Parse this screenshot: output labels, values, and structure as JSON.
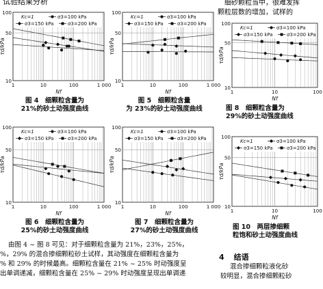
{
  "heading": "试验结果分析",
  "top_right_text": [
    "细砂颗粒当中，很难发挥",
    "颗粒层数的增加，试样的"
  ],
  "legend": {
    "k": "Kc=1",
    "s100": "σ3=100 kPa",
    "s150": "σ3=150 kPa",
    "s200": "σ3=200 kPa"
  },
  "axis": {
    "xlabel": "Nf",
    "ylabel": "τd/kPa",
    "y_ticks": [
      "10",
      "50",
      "100"
    ],
    "x_ticks": [
      "1",
      "10",
      "100",
      "1 000"
    ]
  },
  "colors": {
    "ink": "#111111",
    "grid": "#8a8a8a",
    "curve": "#333333"
  },
  "figures": [
    {
      "id": "fig4",
      "caption_lines": [
        "图 4　细颗粒含量为",
        "21%的砂土动强度曲线"
      ]
    },
    {
      "id": "fig5",
      "caption_lines": [
        "图 5　细颗粒含量",
        "为 23%的砂土动强度曲线"
      ]
    },
    {
      "id": "fig6",
      "caption_lines": [
        "图 6　细颗粒含量为",
        "25%的砂土动强度曲线"
      ]
    },
    {
      "id": "fig7",
      "caption_lines": [
        "图 7　细颗粒含量为",
        "27%的砂土动强度曲线"
      ]
    },
    {
      "id": "fig8",
      "caption_lines": [
        "图 8　细颗粒含量为",
        "29%的砂土动强度曲线"
      ]
    },
    {
      "id": "fig10",
      "caption_lines": [
        "图 10　两层掺细颗",
        "粒饱和砂土动强度曲线"
      ]
    }
  ],
  "body_text": [
    "由图 4 ~ 图 8 可见：对于细颗粒含量为 21%，23%，25%，",
    "%，29% 的混合掺细颗粒砂土试样，其动强度在细颗粒含量为",
    "% 和 29% 的时候最高。细颗粒含量在 21% ~ 25% 时动强度呈",
    "出单调递减，细颗粒含量在 25% ~ 29% 时动强度呈现出单调递"
  ],
  "section": {
    "number": "4",
    "title": "结语"
  },
  "section_text": [
    "混合掺细颗粒液化砂",
    "较明显，混合掺细颗粒砂"
  ],
  "chart_data": [
    {
      "type": "scatter",
      "id": "fig4",
      "x_scale": "log",
      "xlim": [
        1,
        1000
      ],
      "ylim": [
        10,
        100
      ],
      "series": [
        {
          "name": "σ3=100 kPa",
          "marker": "circle",
          "x": [
            10,
            15,
            40,
            60
          ],
          "y": [
            33,
            30,
            28,
            32
          ]
        },
        {
          "name": "σ3=150 kPa",
          "marker": "diamond",
          "x": [
            12,
            30,
            70
          ],
          "y": [
            36,
            34,
            32
          ]
        },
        {
          "name": "σ3=200 kPa",
          "marker": "square",
          "x": [
            45,
            80,
            150
          ],
          "y": [
            42,
            40,
            38
          ]
        }
      ]
    },
    {
      "type": "scatter",
      "id": "fig5",
      "x_scale": "log",
      "xlim": [
        1,
        1000
      ],
      "ylim": [
        10,
        100
      ],
      "series": [
        {
          "name": "σ3=100 kPa",
          "marker": "circle",
          "x": [
            7,
            20,
            60,
            120
          ],
          "y": [
            26,
            28,
            25,
            27
          ]
        },
        {
          "name": "σ3=150 kPa",
          "marker": "diamond",
          "x": [
            10,
            25,
            60
          ],
          "y": [
            33,
            34,
            32
          ]
        },
        {
          "name": "σ3=200 kPa",
          "marker": "square",
          "x": [
            25,
            70
          ],
          "y": [
            40,
            42
          ]
        }
      ]
    },
    {
      "type": "scatter",
      "id": "fig6",
      "x_scale": "log",
      "xlim": [
        1,
        1000
      ],
      "ylim": [
        10,
        100
      ],
      "series": [
        {
          "name": "σ3=100 kPa",
          "marker": "circle",
          "x": [
            15,
            40,
            100
          ],
          "y": [
            24,
            22,
            20
          ]
        },
        {
          "name": "σ3=150 kPa",
          "marker": "diamond",
          "x": [
            12,
            30,
            70
          ],
          "y": [
            28,
            30,
            26
          ]
        },
        {
          "name": "σ3=200 kPa",
          "marker": "square",
          "x": [
            20,
            50
          ],
          "y": [
            32,
            30
          ]
        }
      ]
    },
    {
      "type": "scatter",
      "id": "fig7",
      "x_scale": "log",
      "xlim": [
        1,
        1000
      ],
      "ylim": [
        10,
        100
      ],
      "series": [
        {
          "name": "σ3=100 kPa",
          "marker": "circle",
          "x": [
            10,
            20,
            45
          ],
          "y": [
            25,
            24,
            23
          ]
        },
        {
          "name": "σ3=150 kPa",
          "marker": "diamond",
          "x": [
            30,
            60,
            100
          ],
          "y": [
            30,
            27,
            28
          ]
        },
        {
          "name": "σ3=200 kPa",
          "marker": "square",
          "x": [
            40,
            80
          ],
          "y": [
            36,
            38
          ]
        }
      ]
    },
    {
      "type": "scatter",
      "id": "fig8",
      "x_scale": "log",
      "xlim": [
        1,
        100
      ],
      "ylim": [
        10,
        100
      ],
      "series": [
        {
          "name": "σ3=100 kPa",
          "marker": "circle",
          "x": [
            10,
            20,
            40
          ],
          "y": [
            28,
            26,
            27
          ]
        },
        {
          "name": "σ3=150 kPa",
          "marker": "diamond",
          "x": [
            6,
            14,
            30
          ],
          "y": [
            34,
            32,
            31
          ]
        },
        {
          "name": "σ3=200 kPa",
          "marker": "square",
          "x": [
            5,
            12,
            25,
            40
          ],
          "y": [
            52,
            50,
            49,
            48
          ]
        }
      ]
    },
    {
      "type": "scatter",
      "id": "fig10",
      "x_scale": "log",
      "xlim": [
        1,
        100
      ],
      "ylim": [
        10,
        100
      ],
      "series": [
        {
          "name": "σ3=100 kPa",
          "marker": "circle",
          "x": [
            12,
            25,
            50
          ],
          "y": [
            22,
            20,
            19
          ]
        },
        {
          "name": "σ3=150 kPa",
          "marker": "diamond",
          "x": [
            8,
            18,
            40
          ],
          "y": [
            26,
            25,
            24
          ]
        },
        {
          "name": "σ3=200 kPa",
          "marker": "square",
          "x": [
            15,
            30,
            60
          ],
          "y": [
            32,
            30,
            28
          ]
        }
      ]
    }
  ]
}
